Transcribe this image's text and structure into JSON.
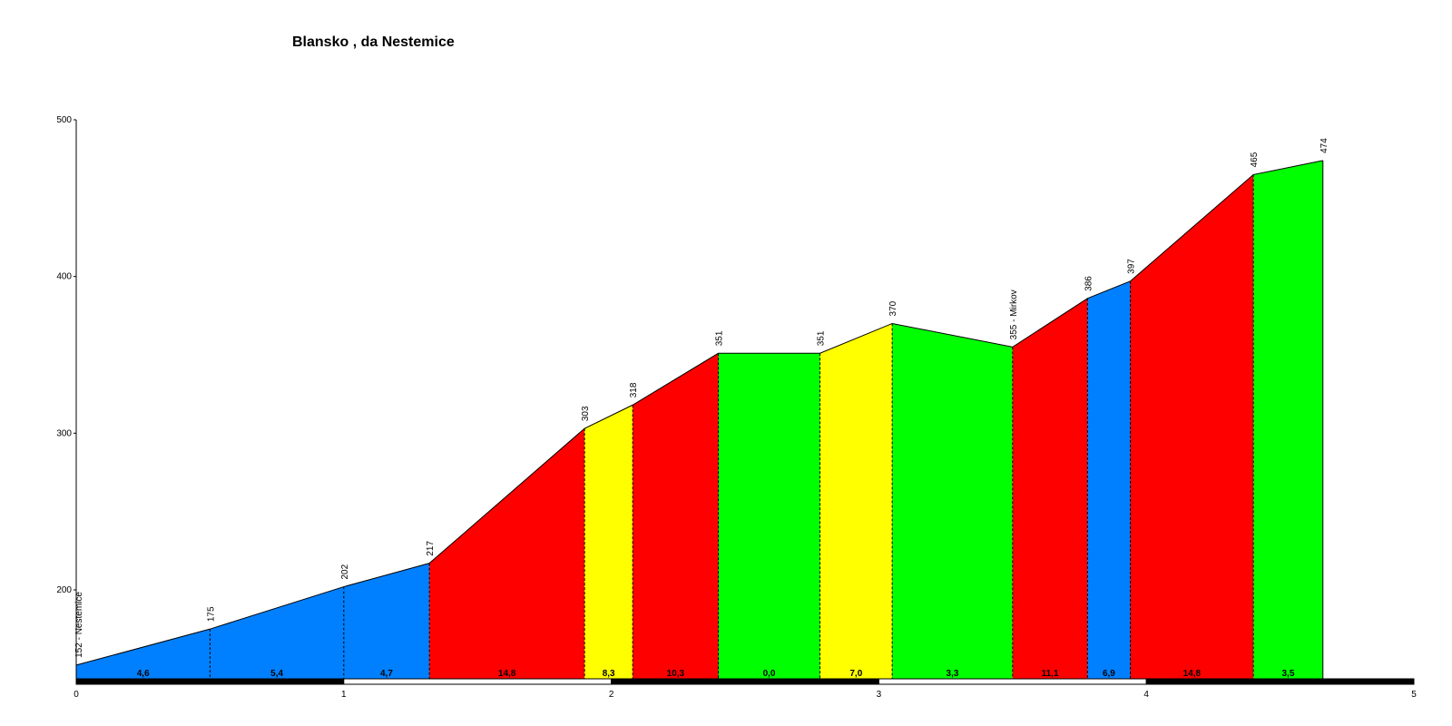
{
  "chart_data": {
    "type": "area",
    "title": "Blansko , da Nestemice",
    "xlabel": "",
    "ylabel": "",
    "xlim": [
      0,
      5
    ],
    "ylim": [
      145,
      500
    ],
    "x_ticks": [
      "0",
      "1",
      "2",
      "3",
      "4",
      "5"
    ],
    "y_ticks": [
      "200",
      "300",
      "400",
      "500"
    ],
    "grid": false,
    "legend": "none",
    "points": [
      {
        "x": 0.0,
        "y": 152,
        "label": "152 - Nestemice"
      },
      {
        "x": 0.5,
        "y": 175,
        "label": "175"
      },
      {
        "x": 1.0,
        "y": 202,
        "label": "202"
      },
      {
        "x": 1.32,
        "y": 217,
        "label": "217"
      },
      {
        "x": 1.9,
        "y": 303,
        "label": "303"
      },
      {
        "x": 2.08,
        "y": 318,
        "label": "318"
      },
      {
        "x": 2.4,
        "y": 351,
        "label": "351"
      },
      {
        "x": 2.78,
        "y": 351,
        "label": "351"
      },
      {
        "x": 3.05,
        "y": 370,
        "label": "370"
      },
      {
        "x": 3.5,
        "y": 355,
        "label": "355 - Mirkov"
      },
      {
        "x": 3.78,
        "y": 386,
        "label": "386"
      },
      {
        "x": 3.94,
        "y": 397,
        "label": "397"
      },
      {
        "x": 4.4,
        "y": 465,
        "label": "465"
      },
      {
        "x": 4.66,
        "y": 474,
        "label": "474"
      }
    ],
    "segments": [
      {
        "from": 0,
        "to": 1,
        "gradient": "4,6",
        "color": "#0080FF"
      },
      {
        "from": 1,
        "to": 2,
        "gradient": "5,4",
        "color": "#0080FF"
      },
      {
        "from": 2,
        "to": 3,
        "gradient": "4,7",
        "color": "#0080FF"
      },
      {
        "from": 3,
        "to": 4,
        "gradient": "14,8",
        "color": "#FF0000"
      },
      {
        "from": 4,
        "to": 5,
        "gradient": "8,3",
        "color": "#FFFF00"
      },
      {
        "from": 5,
        "to": 6,
        "gradient": "10,3",
        "color": "#FF0000"
      },
      {
        "from": 6,
        "to": 7,
        "gradient": "0,0",
        "color": "#00FF00"
      },
      {
        "from": 7,
        "to": 8,
        "gradient": "7,0",
        "color": "#FFFF00"
      },
      {
        "from": 8,
        "to": 9,
        "gradient": "3,3",
        "color": "#00FF00"
      },
      {
        "from": 9,
        "to": 10,
        "gradient": "11,1",
        "color": "#FF0000"
      },
      {
        "from": 10,
        "to": 11,
        "gradient": "6,9",
        "color": "#0080FF"
      },
      {
        "from": 11,
        "to": 12,
        "gradient": "14,8",
        "color": "#FF0000"
      },
      {
        "from": 12,
        "to": 13,
        "gradient": "3,5",
        "color": "#00FF00"
      }
    ],
    "km_bar": [
      {
        "from": 0,
        "to": 1,
        "color": "#000000"
      },
      {
        "from": 1,
        "to": 2,
        "color": "#ffffff"
      },
      {
        "from": 2,
        "to": 3,
        "color": "#000000"
      },
      {
        "from": 3,
        "to": 4,
        "color": "#ffffff"
      },
      {
        "from": 4,
        "to": 5,
        "color": "#000000"
      }
    ]
  }
}
